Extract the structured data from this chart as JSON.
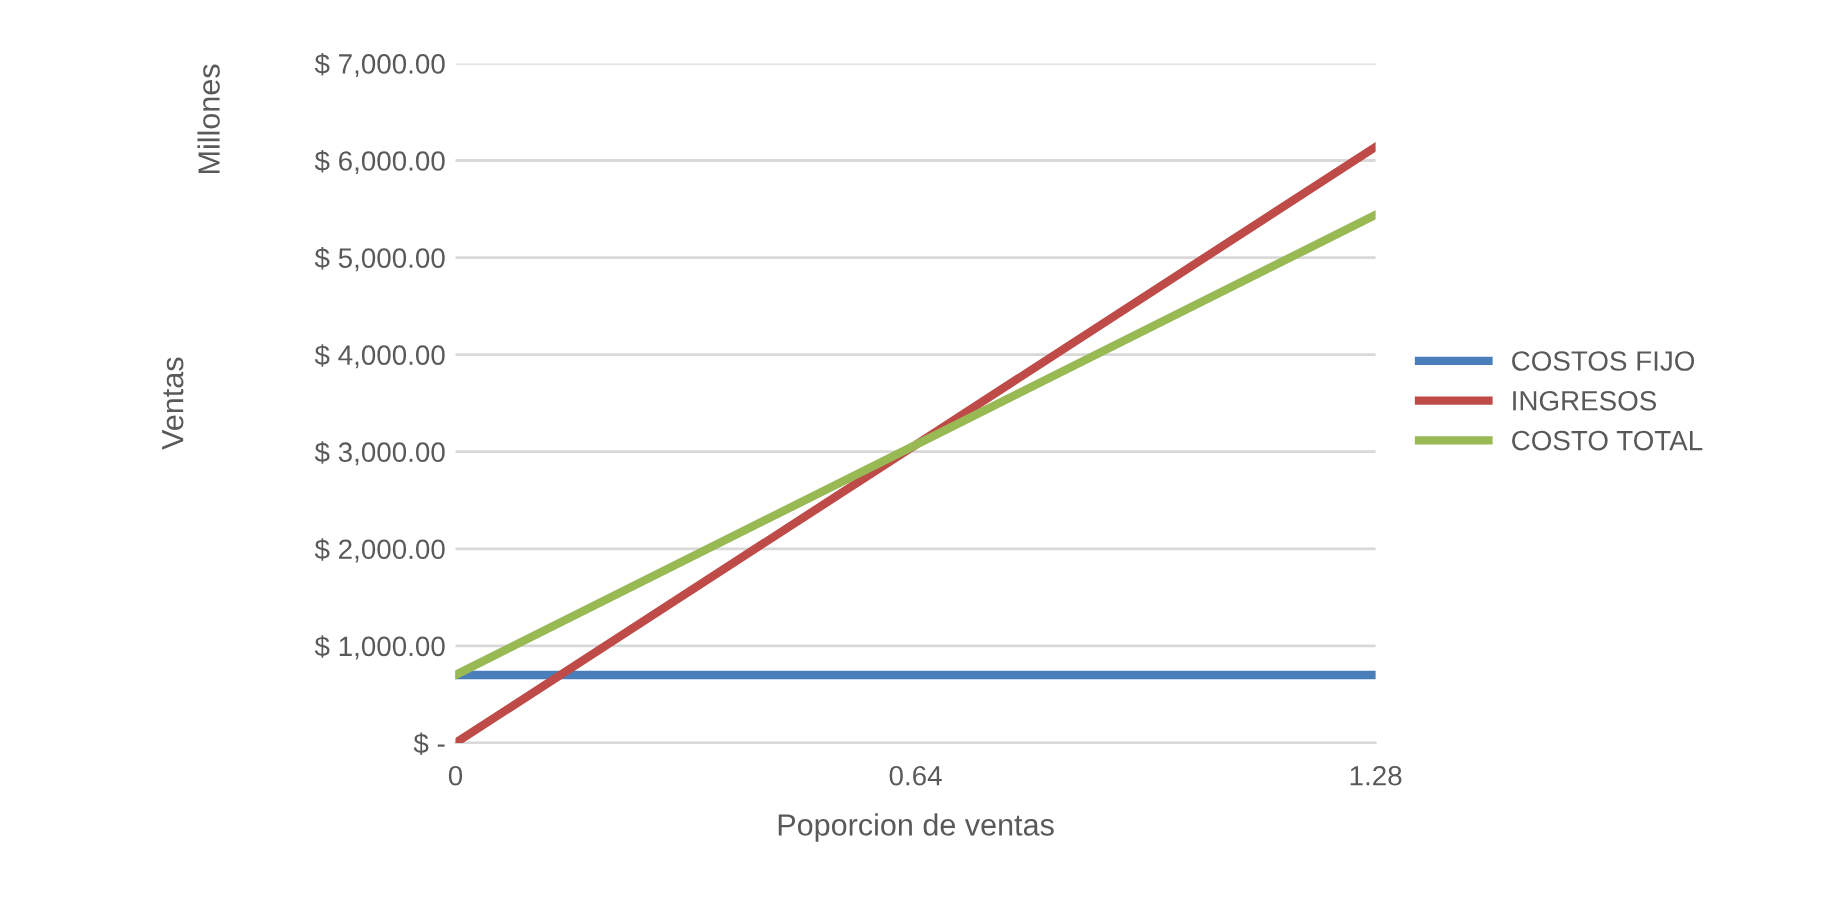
{
  "chart_data": {
    "type": "line",
    "xlabel": "Poporcion de ventas",
    "ylabel": "Ventas",
    "annotations": [
      "Millones"
    ],
    "x": [
      0,
      0.64,
      1.28
    ],
    "series": [
      {
        "name": "COSTOS FIJO",
        "color": "#4a7ebb",
        "values": [
          700,
          700,
          700
        ]
      },
      {
        "name": "INGRESOS",
        "color": "#be4b48",
        "values": [
          0,
          3070,
          6140
        ]
      },
      {
        "name": "COSTO TOTAL",
        "color": "#98b954",
        "values": [
          700,
          3070,
          5440
        ]
      }
    ],
    "xlim": [
      0,
      1.28
    ],
    "xticks": [
      0,
      0.64,
      1.28
    ],
    "ylim": [
      0,
      7000
    ],
    "yticks": [
      {
        "value": 0,
        "label": "$ -"
      },
      {
        "value": 1000,
        "label": "$ 1,000.00"
      },
      {
        "value": 2000,
        "label": "$ 2,000.00"
      },
      {
        "value": 3000,
        "label": "$ 3,000.00"
      },
      {
        "value": 4000,
        "label": "$ 4,000.00"
      },
      {
        "value": 5000,
        "label": "$ 5,000.00"
      },
      {
        "value": 6000,
        "label": "$ 6,000.00"
      },
      {
        "value": 7000,
        "label": "$ 7,000.00"
      }
    ],
    "grid": "y",
    "legend": "right",
    "marker": "none",
    "line_style": "solid"
  }
}
